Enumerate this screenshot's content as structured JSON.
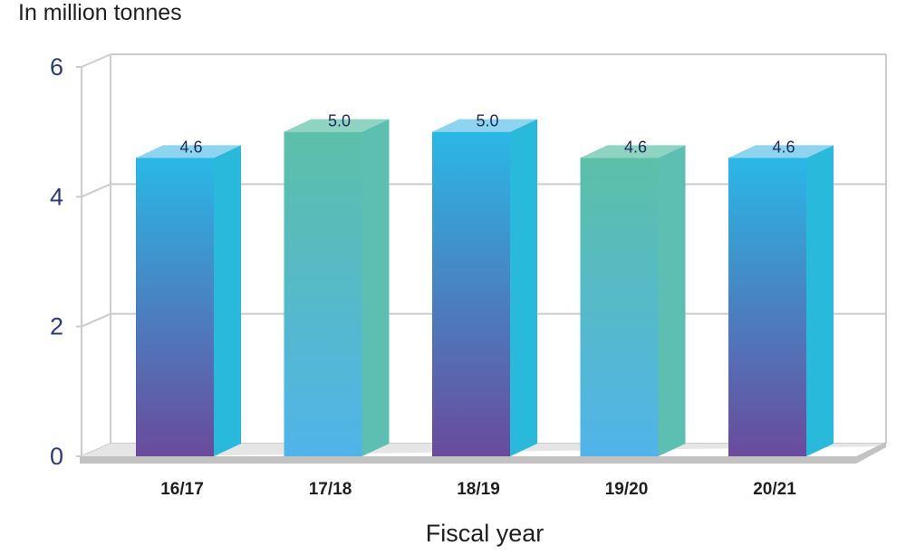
{
  "chart_data": {
    "type": "bar",
    "ylabel": "In million tonnes",
    "xlabel": "Fiscal year",
    "categories": [
      "16/17",
      "17/18",
      "18/19",
      "19/20",
      "20/21"
    ],
    "values": [
      4.6,
      5.0,
      5.0,
      4.6,
      4.6
    ],
    "value_labels": [
      "4.6",
      "5.0",
      "5.0",
      "4.6",
      "4.6"
    ],
    "ylim": [
      0,
      6
    ],
    "yticks": [
      "0",
      "2",
      "4",
      "6"
    ],
    "grid": true,
    "bar_styles": [
      "purple-blue",
      "teal-blue",
      "purple-blue",
      "teal-blue",
      "purple-blue"
    ],
    "colors": {
      "purple_bottom": "#6a4a9c",
      "blue_top": "#2ab8e6",
      "teal_top": "#5cbfa8",
      "light_blue_bottom": "#50b4ea",
      "side_cyan": "#29b9da",
      "side_teal": "#5cbfb2",
      "top_cyan": "#8ed4ee",
      "top_teal": "#8fd4c2",
      "grid": "#cccccc",
      "floor": "#c2c2c2"
    }
  }
}
